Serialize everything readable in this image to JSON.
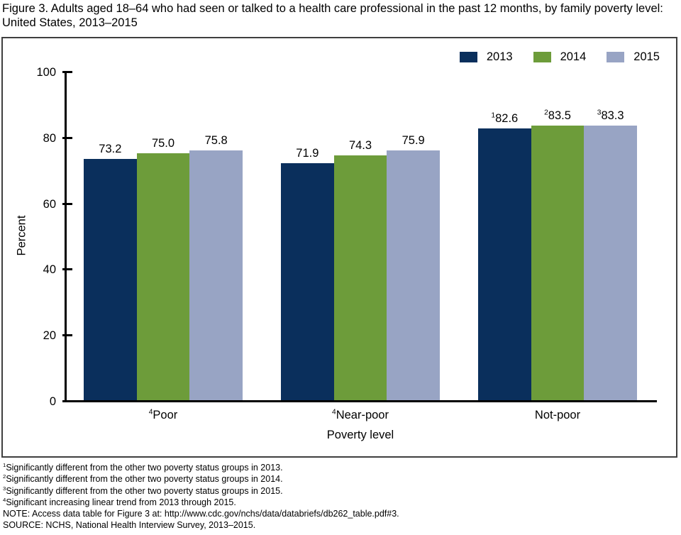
{
  "title": "Figure 3. Adults aged 18–64 who had seen or talked to a health care professional in the past 12 months, by family poverty level: United States, 2013–2015",
  "colors": {
    "series_2013": "#0a2f5c",
    "series_2014": "#6d9c3a",
    "series_2015": "#98a4c4",
    "axis": "#000000",
    "frame_border": "#3f3f3f"
  },
  "chart_data": {
    "type": "bar",
    "categories": [
      "Poor",
      "Near-poor",
      "Not-poor"
    ],
    "category_sups": [
      "4",
      "4",
      ""
    ],
    "series": [
      {
        "name": "2013",
        "color": "#0a2f5c",
        "values": [
          73.2,
          71.9,
          82.6
        ],
        "labels": [
          "73.2",
          "71.9",
          "82.6"
        ],
        "label_sups": [
          "",
          "",
          "1"
        ]
      },
      {
        "name": "2014",
        "color": "#6d9c3a",
        "values": [
          75.0,
          74.3,
          83.5
        ],
        "labels": [
          "75.0",
          "74.3",
          "83.5"
        ],
        "label_sups": [
          "",
          "",
          "2"
        ]
      },
      {
        "name": "2015",
        "color": "#98a4c4",
        "values": [
          75.8,
          75.9,
          83.3
        ],
        "labels": [
          "75.8",
          "75.9",
          "83.3"
        ],
        "label_sups": [
          "",
          "",
          "3"
        ]
      }
    ],
    "xlabel": "Poverty level",
    "ylabel": "Percent",
    "ylim": [
      0,
      100
    ],
    "yticks": [
      0,
      20,
      40,
      60,
      80,
      100
    ],
    "grid": "off",
    "legend_position": "top-right"
  },
  "footnotes": [
    {
      "sup": "1",
      "text": "Significantly different from the other two poverty status groups in 2013."
    },
    {
      "sup": "2",
      "text": "Significantly different from the other two poverty status groups in 2014."
    },
    {
      "sup": "3",
      "text": "Significantly different from the other two poverty status groups in 2015."
    },
    {
      "sup": "4",
      "text": "Significant increasing linear trend from 2013 through 2015."
    },
    {
      "sup": "",
      "text": "NOTE: Access data table for Figure 3 at: http://www.cdc.gov/nchs/data/databriefs/db262_table.pdf#3."
    },
    {
      "sup": "",
      "text": "SOURCE: NCHS, National Health Interview Survey, 2013–2015."
    }
  ]
}
